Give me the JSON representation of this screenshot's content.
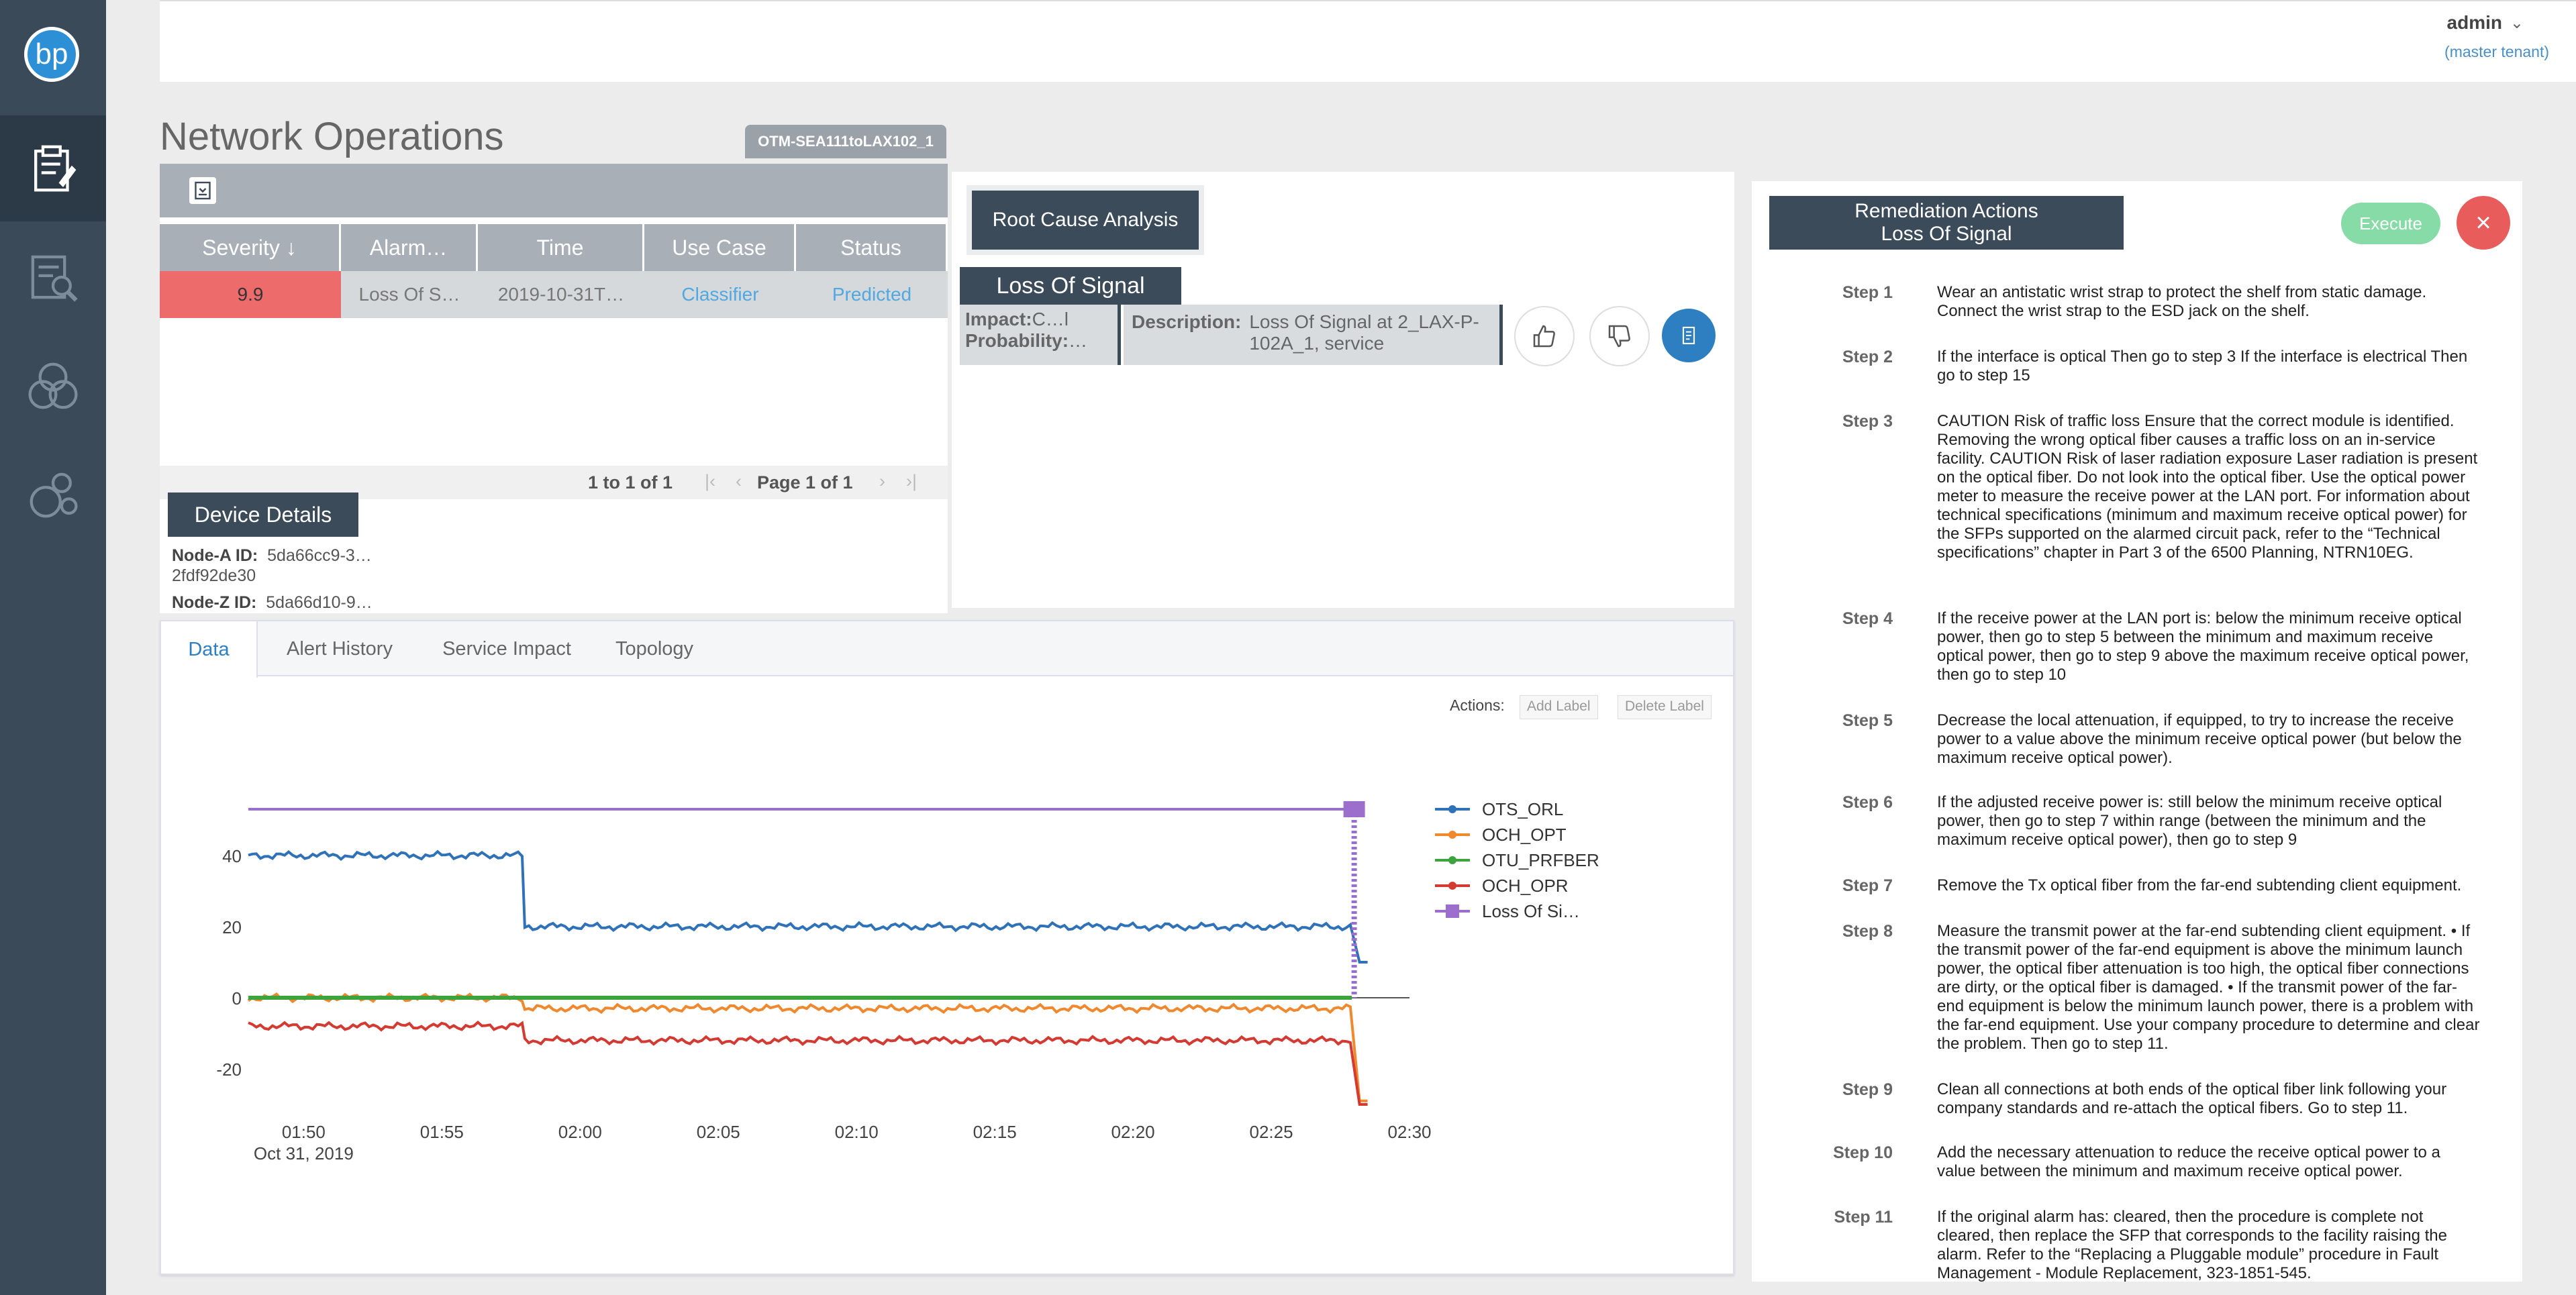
{
  "app": {
    "logo": "bp",
    "title": "Network Operations",
    "context": "OTM-SEA111toLAX102_1"
  },
  "user": {
    "name": "admin",
    "tenant": "(master tenant)"
  },
  "alarms": {
    "columns": [
      "Severity ↓",
      "Alarm…",
      "Time",
      "Use Case",
      "Status"
    ],
    "rows": [
      {
        "severity": "9.9",
        "alarm": "Loss Of S…",
        "time": "2019-10-31T…",
        "use_case": "Classifier",
        "status": "Predicted"
      }
    ],
    "pager": {
      "range": "1 to 1 of 1",
      "page": "Page 1 of 1"
    }
  },
  "device": {
    "title": "Device Details",
    "node_a_label": "Node-A ID:",
    "node_a_value": "5da66cc9-3…",
    "node_a_cont": "2fdf92de30",
    "node_z_label": "Node-Z ID:",
    "node_z_value": "5da66d10-9…"
  },
  "rca": {
    "title": "Root Cause Analysis",
    "alarm": "Loss Of Signal",
    "impact_label": "Impact:",
    "impact_value": "C…l",
    "probability_label": "Probability:",
    "probability_value": "…",
    "description_label": "Description:",
    "description_value": "Loss Of Signal at 2_LAX-P-102A_1, service"
  },
  "tabs": [
    "Data",
    "Alert History",
    "Service Impact",
    "Topology"
  ],
  "actions": {
    "label": "Actions:",
    "add": "Add Label",
    "delete": "Delete Label"
  },
  "chart_data": {
    "type": "line",
    "x_ticks": [
      "01:50",
      "01:55",
      "02:00",
      "02:05",
      "02:10",
      "02:15",
      "02:20",
      "02:25",
      "02:30"
    ],
    "x_date": "Oct 31, 2019",
    "x_range": [
      "01:48",
      "02:30"
    ],
    "y_ticks": [
      40,
      20,
      0,
      -20
    ],
    "ylim": [
      -30,
      53
    ],
    "series": [
      {
        "name": "OTS_ORL",
        "color": "#2f72b8",
        "segments": [
          {
            "from": "01:48",
            "to": "01:58",
            "value": 40
          },
          {
            "from": "01:58",
            "to": "02:28",
            "value": 20
          }
        ],
        "end_value": 10
      },
      {
        "name": "OCH_OPT",
        "color": "#f0882e",
        "segments": [
          {
            "from": "01:48",
            "to": "01:58",
            "value": 0
          },
          {
            "from": "01:58",
            "to": "02:28",
            "value": -3
          }
        ],
        "end_value": -29
      },
      {
        "name": "OTU_PRFBER",
        "color": "#3da33d",
        "segments": [
          {
            "from": "01:48",
            "to": "02:28",
            "value": 0
          }
        ]
      },
      {
        "name": "OCH_OPR",
        "color": "#d33a32",
        "segments": [
          {
            "from": "01:48",
            "to": "01:58",
            "value": -8
          },
          {
            "from": "01:58",
            "to": "02:28",
            "value": -12
          }
        ],
        "end_value": -30
      },
      {
        "name": "Loss Of Si…",
        "color": "#9b6fcb",
        "segments": [
          {
            "from": "01:48",
            "to": "02:28",
            "value": 53
          }
        ]
      }
    ],
    "legend_position": "right"
  },
  "remediation": {
    "title_line1": "Remediation Actions",
    "title_line2": "Loss Of Signal",
    "execute": "Execute",
    "close": "×",
    "steps": [
      {
        "label": "Step 1",
        "text": "Wear an antistatic wrist strap to protect the shelf from static damage. Connect the wrist strap to the ESD jack on the shelf."
      },
      {
        "label": "Step 2",
        "text": "If the interface is optical Then go to step 3 If the interface is electrical Then go to step 15"
      },
      {
        "label": "Step 3",
        "text": "CAUTION Risk of traffic loss Ensure that the correct module is identified. Removing the wrong optical fiber causes a traffic loss on an in-service facility. CAUTION Risk of laser radiation exposure Laser radiation is present on the optical fiber. Do not look into the optical fiber. Use the optical power meter to measure the receive power at the LAN port. For information about technical specifications (minimum and maximum receive optical power) for the SFPs supported on the alarmed circuit pack, refer to the “Technical specifications” chapter in Part 3 of the 6500 Planning, NTRN10EG."
      },
      {
        "label": "Step 4",
        "text": "If the receive power at the LAN port is: below the minimum receive optical power, then go to step 5 between the minimum and maximum receive optical power, then go to step 9 above the maximum receive optical power, then go to step 10"
      },
      {
        "label": "Step 5",
        "text": "Decrease the local attenuation, if equipped, to try to increase the receive power to a value above the minimum receive optical power (but below the maximum receive optical power)."
      },
      {
        "label": "Step 6",
        "text": "If the adjusted receive power is: still below the minimum receive optical power, then go to step 7 within range (between the minimum and the maximum receive optical power), then go to step 9"
      },
      {
        "label": "Step 7",
        "text": "Remove the Tx optical fiber from the far-end subtending client equipment."
      },
      {
        "label": "Step 8",
        "text": "Measure the transmit power at the far-end subtending client equipment. • If the transmit power of the far-end equipment is above the minimum launch power, the optical fiber attenuation is too high, the optical fiber connections are dirty, or the optical fiber is damaged. • If the transmit power of the far-end equipment is below the minimum launch power, there is a problem with the far-end equipment. Use your company procedure to determine and clear the problem. Then go to step 11."
      },
      {
        "label": "Step 9",
        "text": "Clean all connections at both ends of the optical fiber link following your company standards and re-attach the optical fibers. Go to step 11."
      },
      {
        "label": "Step 10",
        "text": "Add the necessary attenuation to reduce the receive optical power to a value between the minimum and maximum receive optical power."
      },
      {
        "label": "Step 11",
        "text": "If the original alarm has: cleared, then the procedure is complete not cleared, then replace the SFP that corresponds to the facility raising the alarm. Refer to the “Replacing a Pluggable module” procedure in Fault Management - Module Replacement, 323-1851-545."
      }
    ]
  }
}
